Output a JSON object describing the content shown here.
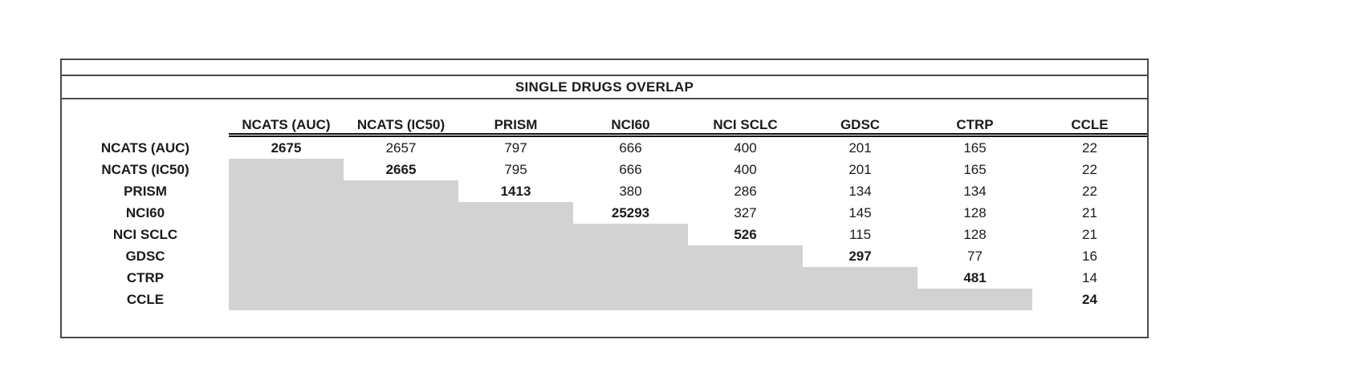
{
  "title": "SINGLE DRUGS OVERLAP",
  "colors": {
    "shade": "#d2d2d2",
    "border": "#4a4a4a",
    "text": "#1a1a1a"
  },
  "chart_data": {
    "type": "table",
    "title": "SINGLE DRUGS OVERLAP",
    "columns": [
      "NCATS (AUC)",
      "NCATS (IC50)",
      "PRISM",
      "NCI60",
      "NCI SCLC",
      "GDSC",
      "CTRP",
      "CCLE"
    ],
    "row_labels": [
      "NCATS (AUC)",
      "NCATS (IC50)",
      "PRISM",
      "NCI60",
      "NCI SCLC",
      "GDSC",
      "CTRP",
      "CCLE"
    ],
    "matrix": [
      [
        2675,
        2657,
        797,
        666,
        400,
        201,
        165,
        22
      ],
      [
        null,
        2665,
        795,
        666,
        400,
        201,
        165,
        22
      ],
      [
        null,
        null,
        1413,
        380,
        286,
        134,
        134,
        22
      ],
      [
        null,
        null,
        null,
        25293,
        327,
        145,
        128,
        21
      ],
      [
        null,
        null,
        null,
        null,
        526,
        115,
        128,
        21
      ],
      [
        null,
        null,
        null,
        null,
        null,
        297,
        77,
        16
      ],
      [
        null,
        null,
        null,
        null,
        null,
        null,
        481,
        14
      ],
      [
        null,
        null,
        null,
        null,
        null,
        null,
        null,
        24
      ]
    ],
    "layout": {
      "lower_triangle": "shaded-gray",
      "diagonal": "bold",
      "header_rule": "double-line",
      "legend": "none",
      "grid": "off"
    }
  }
}
